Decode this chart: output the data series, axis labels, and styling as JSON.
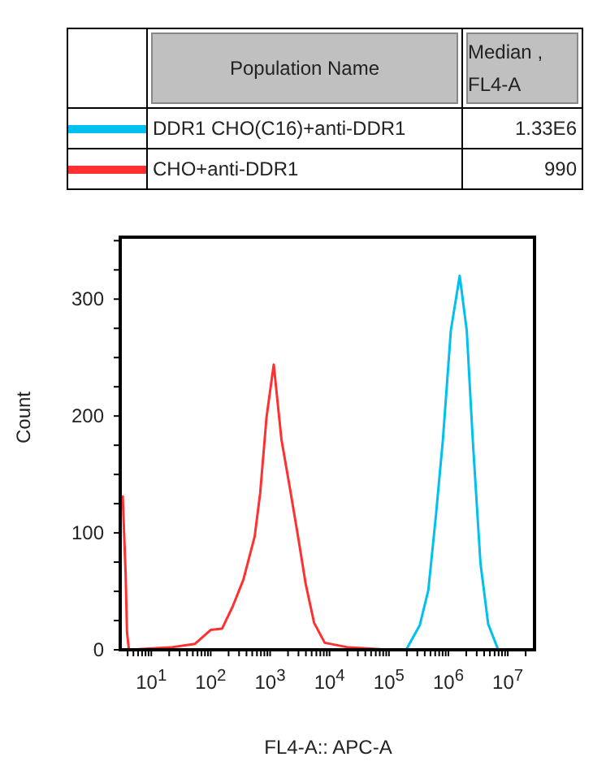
{
  "chart_data": {
    "type": "line",
    "xlabel": "FL4-A:: APC-A",
    "ylabel": "Count",
    "log": "x",
    "legend": "top",
    "annotations": [
      "Population Name",
      "Median , FL4-A",
      "1.33E6",
      "990"
    ],
    "xlim": [
      3,
      30000000
    ],
    "ylim": [
      0,
      353
    ],
    "xticks": [
      {
        "value": 4,
        "label": null
      },
      {
        "value": 5,
        "label": null
      },
      {
        "value": 6,
        "label": null
      },
      {
        "value": 7,
        "label": null
      },
      {
        "value": 8,
        "label": null
      },
      {
        "value": 9,
        "label": null
      },
      {
        "value": 10,
        "label": "10$^{1}$"
      },
      {
        "value": 20,
        "label": null
      },
      {
        "value": 30,
        "label": null
      },
      {
        "value": 40,
        "label": null
      },
      {
        "value": 50,
        "label": null
      },
      {
        "value": 60,
        "label": null
      },
      {
        "value": 70,
        "label": null
      },
      {
        "value": 80,
        "label": null
      },
      {
        "value": 90,
        "label": null
      },
      {
        "value": 100,
        "label": "10$^{2}$"
      },
      {
        "value": 200,
        "label": null
      },
      {
        "value": 300,
        "label": null
      },
      {
        "value": 400,
        "label": null
      },
      {
        "value": 500,
        "label": null
      },
      {
        "value": 600,
        "label": null
      },
      {
        "value": 700,
        "label": null
      },
      {
        "value": 800,
        "label": null
      },
      {
        "value": 900,
        "label": null
      },
      {
        "value": 1000,
        "label": "10$^{3}$"
      },
      {
        "value": 2000,
        "label": null
      },
      {
        "value": 3000,
        "label": null
      },
      {
        "value": 4000,
        "label": null
      },
      {
        "value": 5000,
        "label": null
      },
      {
        "value": 6000,
        "label": null
      },
      {
        "value": 7000,
        "label": null
      },
      {
        "value": 8000,
        "label": null
      },
      {
        "value": 9000,
        "label": null
      },
      {
        "value": 10000,
        "label": "10$^{4}$"
      },
      {
        "value": 20000,
        "label": null
      },
      {
        "value": 30000,
        "label": null
      },
      {
        "value": 40000,
        "label": null
      },
      {
        "value": 50000,
        "label": null
      },
      {
        "value": 60000,
        "label": null
      },
      {
        "value": 70000,
        "label": null
      },
      {
        "value": 80000,
        "label": null
      },
      {
        "value": 90000,
        "label": null
      },
      {
        "value": 100000,
        "label": "10$^{5}$"
      },
      {
        "value": 200000,
        "label": null
      },
      {
        "value": 300000,
        "label": null
      },
      {
        "value": 400000,
        "label": null
      },
      {
        "value": 500000,
        "label": null
      },
      {
        "value": 600000,
        "label": null
      },
      {
        "value": 700000,
        "label": null
      },
      {
        "value": 800000,
        "label": null
      },
      {
        "value": 900000,
        "label": null
      },
      {
        "value": 1000000,
        "label": "10$^{6}$"
      },
      {
        "value": 2000000,
        "label": null
      },
      {
        "value": 3000000,
        "label": null
      },
      {
        "value": 4000000,
        "label": null
      },
      {
        "value": 5000000,
        "label": null
      },
      {
        "value": 6000000,
        "label": null
      },
      {
        "value": 7000000,
        "label": null
      },
      {
        "value": 8000000,
        "label": null
      },
      {
        "value": 9000000,
        "label": null
      },
      {
        "value": 10000000,
        "label": "10$^{7}$"
      },
      {
        "value": 20000000,
        "label": null
      }
    ],
    "yticks": [
      0,
      {
        "value": 25,
        "label": null
      },
      {
        "value": 50,
        "label": null
      },
      {
        "value": 75,
        "label": null
      },
      100,
      {
        "value": 125,
        "label": null
      },
      {
        "value": 150,
        "label": null
      },
      {
        "value": 175,
        "label": null
      },
      200,
      {
        "value": 225,
        "label": null
      },
      {
        "value": 250,
        "label": null
      },
      {
        "value": 275,
        "label": null
      },
      300,
      {
        "value": 325,
        "label": null
      },
      {
        "value": 350,
        "label": null
      }
    ],
    "series": [
      {
        "name": "DDR1 CHO(C16)+anti-DDR1",
        "color": "#00c0ef",
        "x": [
          3,
          100000,
          195000,
          330000,
          460000,
          620000,
          810000,
          1100000,
          1550000,
          2040000,
          2570000,
          3470000,
          4680000,
          6900000,
          30000000
        ],
        "values": [
          0,
          0,
          0,
          21,
          51,
          116,
          180,
          273,
          320,
          273,
          180,
          74,
          22,
          0,
          0
        ]
      },
      {
        "name": "CHO+anti-DDR1",
        "color": "#ff3030",
        "x": [
          3.3,
          3.7,
          3.9,
          4.2,
          21,
          54,
          100,
          155,
          234,
          355,
          550,
          680,
          870,
          1150,
          1550,
          2140,
          2950,
          3980,
          5500,
          8300,
          21000,
          100000,
          30000000
        ],
        "values": [
          132,
          65,
          15,
          0,
          2,
          5,
          17,
          18,
          37,
          60,
          97,
          134,
          199,
          244,
          180,
          139,
          97,
          56,
          23,
          6,
          2,
          0,
          0
        ]
      }
    ]
  }
}
